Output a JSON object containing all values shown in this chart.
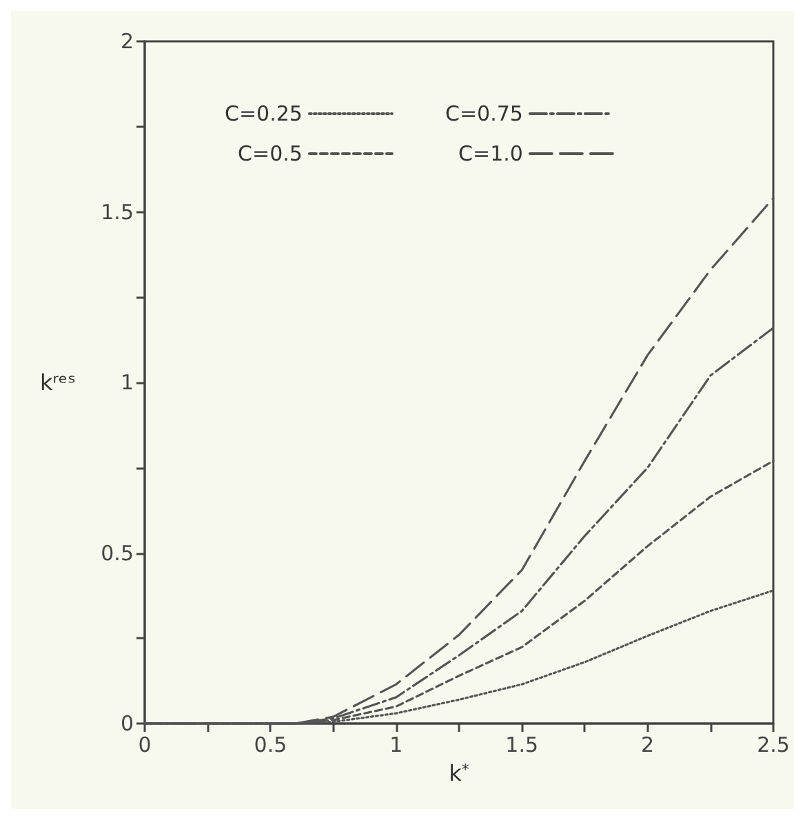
{
  "chart_data": {
    "type": "line",
    "xlabel": "k$^{*}$",
    "ylabel": "kʳᵉˢ",
    "x": [
      0,
      0.6,
      0.75,
      1,
      1.25,
      1.5,
      1.75,
      2,
      2.25,
      2.5
    ],
    "series": [
      {
        "name": "C=0.25",
        "color": "#555555",
        "line_style": "dotted",
        "values": [
          0,
          0,
          0.005,
          0.03,
          0.07,
          0.115,
          0.18,
          0.257,
          0.33,
          0.39
        ]
      },
      {
        "name": "C=0.5",
        "color": "#555555",
        "line_style": "dashed",
        "values": [
          0,
          0,
          0.01,
          0.05,
          0.14,
          0.224,
          0.36,
          0.52,
          0.665,
          0.77
        ]
      },
      {
        "name": "C=0.75",
        "color": "#555555",
        "line_style": "dashdot",
        "values": [
          0,
          0,
          0.015,
          0.077,
          0.2,
          0.33,
          0.55,
          0.75,
          1.02,
          1.16
        ]
      },
      {
        "name": "C=1.0",
        "color": "#555555",
        "line_style": "longdash",
        "values": [
          0,
          0,
          0.02,
          0.115,
          0.26,
          0.45,
          0.77,
          1.08,
          1.33,
          1.54
        ]
      }
    ],
    "xlim": [
      0,
      2.5
    ],
    "xticks": [
      0,
      {
        "value": 0.25,
        "label": null
      },
      0.5,
      {
        "value": 0.75,
        "label": null
      },
      1,
      {
        "value": 1.25,
        "label": null
      },
      1.5,
      {
        "value": 1.75,
        "label": null
      },
      2,
      {
        "value": 2.25,
        "label": null
      },
      2.5
    ],
    "ylim": [
      0,
      2
    ],
    "yticks": [
      0,
      {
        "value": 0.25,
        "label": null
      },
      0.5,
      {
        "value": 0.75,
        "label": null
      },
      1,
      {
        "value": 1.25,
        "label": null
      },
      1.5,
      {
        "value": 1.75,
        "label": null
      },
      2
    ],
    "grid": false,
    "legend": "top left",
    "marker": "none"
  }
}
